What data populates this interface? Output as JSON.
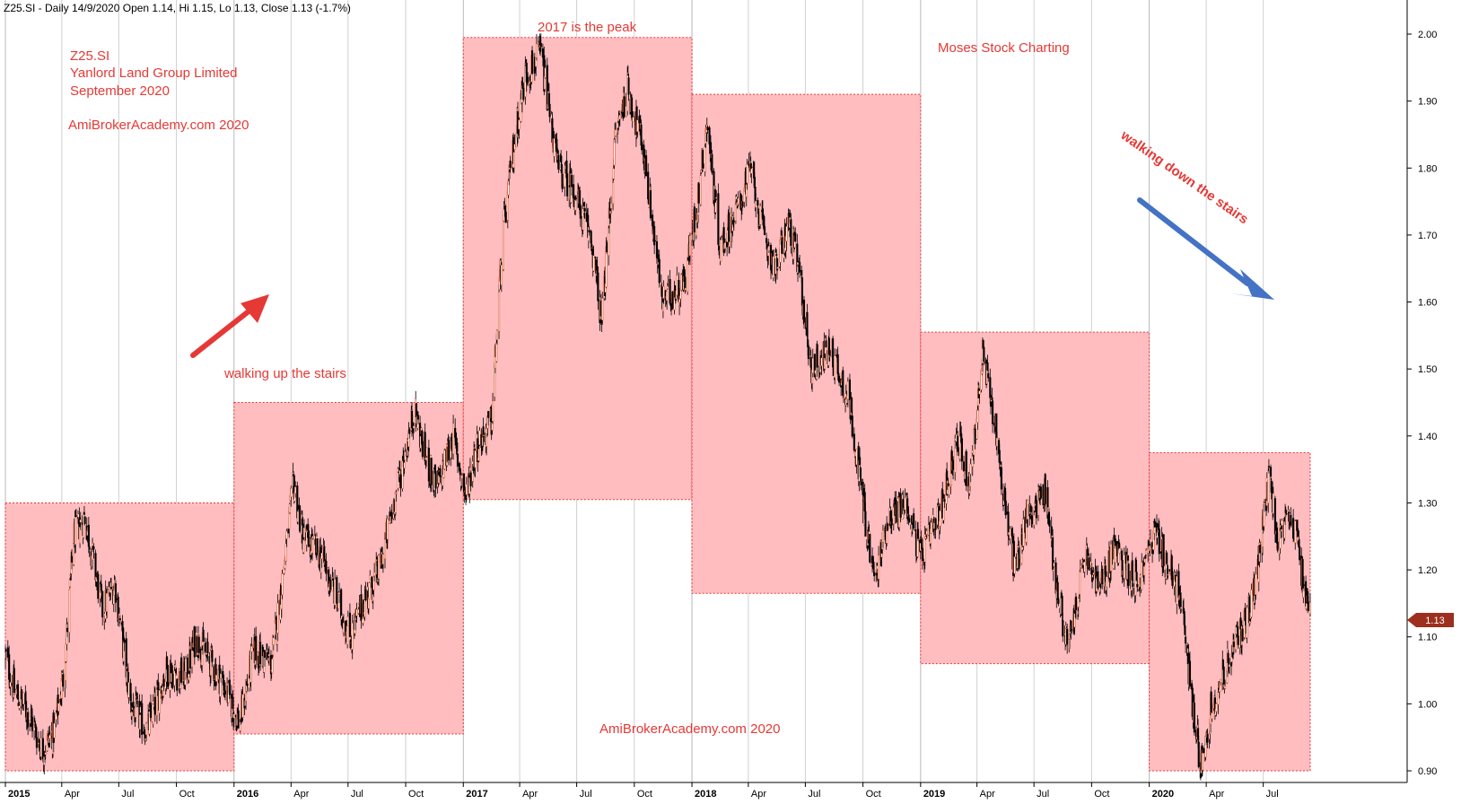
{
  "header": {
    "text": "Z25.SI - Daily 14/9/2020 Open 1.14, Hi 1.15, Lo 1.13, Close 1.13 (-1.7%)"
  },
  "annotations": {
    "ticker": "Z25.SI",
    "company": "Yanlord Land Group Limited",
    "period": "September 2020",
    "site_top": "AmiBrokerAcademy.com  2020",
    "site_bottom": "AmiBrokerAcademy.com  2020",
    "peak": "2017 is the peak",
    "author": "Moses Stock Charting",
    "up_stairs": "walking up the stairs",
    "down_stairs": "walking down the stairs"
  },
  "last_price_badge": "1.13",
  "colors": {
    "candle": "#000000",
    "box_fill": "#ffbdc0",
    "box_border": "#e53935",
    "text": "#e53935",
    "up_arrow": "#e53935",
    "down_arrow": "#4472c4",
    "badge": "#9c2f1e",
    "grid": "#d0d0d0"
  },
  "chart_data": {
    "type": "candlestick",
    "y_axis": {
      "position": "right",
      "ylim": [
        0.88,
        2.02
      ],
      "ticks": [
        0.9,
        1.0,
        1.1,
        1.2,
        1.3,
        1.4,
        1.5,
        1.6,
        1.7,
        1.8,
        1.9,
        2.0
      ],
      "tick_labels": [
        "0.90",
        "1.00",
        "1.10",
        "1.20",
        "1.30",
        "1.40",
        "1.50",
        "1.60",
        "1.70",
        "1.80",
        "1.90",
        "2.00"
      ]
    },
    "x_axis": {
      "start": "2015-01",
      "end": "2020-09-14",
      "ticks": [
        {
          "label": "2015",
          "date": "2015-01",
          "year": true
        },
        {
          "label": "Apr",
          "date": "2015-04"
        },
        {
          "label": "Jul",
          "date": "2015-07"
        },
        {
          "label": "Oct",
          "date": "2015-10"
        },
        {
          "label": "2016",
          "date": "2016-01",
          "year": true
        },
        {
          "label": "Apr",
          "date": "2016-04"
        },
        {
          "label": "Jul",
          "date": "2016-07"
        },
        {
          "label": "Oct",
          "date": "2016-10"
        },
        {
          "label": "2017",
          "date": "2017-01",
          "year": true
        },
        {
          "label": "Apr",
          "date": "2017-04"
        },
        {
          "label": "Jul",
          "date": "2017-07"
        },
        {
          "label": "Oct",
          "date": "2017-10"
        },
        {
          "label": "2018",
          "date": "2018-01",
          "year": true
        },
        {
          "label": "Apr",
          "date": "2018-04"
        },
        {
          "label": "Jul",
          "date": "2018-07"
        },
        {
          "label": "Oct",
          "date": "2018-10"
        },
        {
          "label": "2019",
          "date": "2019-01",
          "year": true
        },
        {
          "label": "Apr",
          "date": "2019-04"
        },
        {
          "label": "Jul",
          "date": "2019-07"
        },
        {
          "label": "Oct",
          "date": "2019-10"
        },
        {
          "label": "2020",
          "date": "2020-01",
          "year": true
        },
        {
          "label": "Apr",
          "date": "2020-04"
        },
        {
          "label": "Jul",
          "date": "2020-07"
        }
      ]
    },
    "yearly_ranges": [
      {
        "year": "2015",
        "low": 0.9,
        "high": 1.3
      },
      {
        "year": "2016",
        "low": 0.955,
        "high": 1.45
      },
      {
        "year": "2017",
        "low": 1.305,
        "high": 1.995
      },
      {
        "year": "2018",
        "low": 1.165,
        "high": 1.91
      },
      {
        "year": "2019",
        "low": 1.06,
        "high": 1.555
      },
      {
        "year": "2020",
        "low": 0.9,
        "high": 1.375
      }
    ],
    "close_path": [
      {
        "date": "2015-01-02",
        "close": 1.07
      },
      {
        "date": "2015-01-15",
        "close": 1.02
      },
      {
        "date": "2015-02-10",
        "close": 0.98
      },
      {
        "date": "2015-03-01",
        "close": 0.93
      },
      {
        "date": "2015-03-20",
        "close": 0.96
      },
      {
        "date": "2015-04-05",
        "close": 1.05
      },
      {
        "date": "2015-04-20",
        "close": 1.25
      },
      {
        "date": "2015-05-08",
        "close": 1.28
      },
      {
        "date": "2015-06-05",
        "close": 1.14
      },
      {
        "date": "2015-06-25",
        "close": 1.18
      },
      {
        "date": "2015-07-20",
        "close": 1.0
      },
      {
        "date": "2015-08-15",
        "close": 0.96
      },
      {
        "date": "2015-09-15",
        "close": 1.05
      },
      {
        "date": "2015-10-15",
        "close": 1.04
      },
      {
        "date": "2015-11-01",
        "close": 1.1
      },
      {
        "date": "2015-12-15",
        "close": 1.03
      },
      {
        "date": "2016-01-10",
        "close": 0.97
      },
      {
        "date": "2016-02-01",
        "close": 1.08
      },
      {
        "date": "2016-03-01",
        "close": 1.06
      },
      {
        "date": "2016-03-20",
        "close": 1.2
      },
      {
        "date": "2016-04-05",
        "close": 1.33
      },
      {
        "date": "2016-04-20",
        "close": 1.25
      },
      {
        "date": "2016-05-20",
        "close": 1.22
      },
      {
        "date": "2016-06-15",
        "close": 1.15
      },
      {
        "date": "2016-07-05",
        "close": 1.1
      },
      {
        "date": "2016-07-25",
        "close": 1.15
      },
      {
        "date": "2016-08-20",
        "close": 1.2
      },
      {
        "date": "2016-09-05",
        "close": 1.27
      },
      {
        "date": "2016-10-01",
        "close": 1.38
      },
      {
        "date": "2016-10-15",
        "close": 1.44
      },
      {
        "date": "2016-11-01",
        "close": 1.37
      },
      {
        "date": "2016-11-20",
        "close": 1.32
      },
      {
        "date": "2016-12-15",
        "close": 1.4
      },
      {
        "date": "2017-01-05",
        "close": 1.31
      },
      {
        "date": "2017-01-20",
        "close": 1.38
      },
      {
        "date": "2017-02-15",
        "close": 1.42
      },
      {
        "date": "2017-03-05",
        "close": 1.7
      },
      {
        "date": "2017-03-25",
        "close": 1.85
      },
      {
        "date": "2017-04-10",
        "close": 1.94
      },
      {
        "date": "2017-05-05",
        "close": 1.97
      },
      {
        "date": "2017-06-01",
        "close": 1.8
      },
      {
        "date": "2017-06-25",
        "close": 1.77
      },
      {
        "date": "2017-07-25",
        "close": 1.69
      },
      {
        "date": "2017-08-10",
        "close": 1.57
      },
      {
        "date": "2017-09-01",
        "close": 1.85
      },
      {
        "date": "2017-09-20",
        "close": 1.92
      },
      {
        "date": "2017-10-15",
        "close": 1.83
      },
      {
        "date": "2017-11-15",
        "close": 1.6
      },
      {
        "date": "2017-12-20",
        "close": 1.63
      },
      {
        "date": "2018-01-10",
        "close": 1.75
      },
      {
        "date": "2018-01-25",
        "close": 1.87
      },
      {
        "date": "2018-02-15",
        "close": 1.68
      },
      {
        "date": "2018-03-15",
        "close": 1.74
      },
      {
        "date": "2018-04-05",
        "close": 1.8
      },
      {
        "date": "2018-04-25",
        "close": 1.7
      },
      {
        "date": "2018-05-15",
        "close": 1.65
      },
      {
        "date": "2018-06-05",
        "close": 1.72
      },
      {
        "date": "2018-06-25",
        "close": 1.62
      },
      {
        "date": "2018-07-10",
        "close": 1.5
      },
      {
        "date": "2018-08-10",
        "close": 1.53
      },
      {
        "date": "2018-09-10",
        "close": 1.45
      },
      {
        "date": "2018-10-01",
        "close": 1.3
      },
      {
        "date": "2018-10-20",
        "close": 1.18
      },
      {
        "date": "2018-11-10",
        "close": 1.28
      },
      {
        "date": "2018-12-10",
        "close": 1.3
      },
      {
        "date": "2019-01-01",
        "close": 1.22
      },
      {
        "date": "2019-02-01",
        "close": 1.28
      },
      {
        "date": "2019-03-01",
        "close": 1.4
      },
      {
        "date": "2019-03-20",
        "close": 1.33
      },
      {
        "date": "2019-04-10",
        "close": 1.52
      },
      {
        "date": "2019-04-30",
        "close": 1.42
      },
      {
        "date": "2019-05-15",
        "close": 1.3
      },
      {
        "date": "2019-06-01",
        "close": 1.2
      },
      {
        "date": "2019-06-20",
        "close": 1.28
      },
      {
        "date": "2019-07-20",
        "close": 1.32
      },
      {
        "date": "2019-08-05",
        "close": 1.18
      },
      {
        "date": "2019-08-25",
        "close": 1.08
      },
      {
        "date": "2019-09-20",
        "close": 1.22
      },
      {
        "date": "2019-10-15",
        "close": 1.17
      },
      {
        "date": "2019-11-05",
        "close": 1.23
      },
      {
        "date": "2019-12-15",
        "close": 1.18
      },
      {
        "date": "2020-01-10",
        "close": 1.26
      },
      {
        "date": "2020-02-01",
        "close": 1.2
      },
      {
        "date": "2020-02-20",
        "close": 1.16
      },
      {
        "date": "2020-03-10",
        "close": 1.0
      },
      {
        "date": "2020-03-23",
        "close": 0.91
      },
      {
        "date": "2020-04-10",
        "close": 1.0
      },
      {
        "date": "2020-05-05",
        "close": 1.06
      },
      {
        "date": "2020-06-01",
        "close": 1.12
      },
      {
        "date": "2020-06-20",
        "close": 1.18
      },
      {
        "date": "2020-07-10",
        "close": 1.34
      },
      {
        "date": "2020-07-25",
        "close": 1.24
      },
      {
        "date": "2020-08-15",
        "close": 1.28
      },
      {
        "date": "2020-09-14",
        "close": 1.13
      }
    ]
  }
}
